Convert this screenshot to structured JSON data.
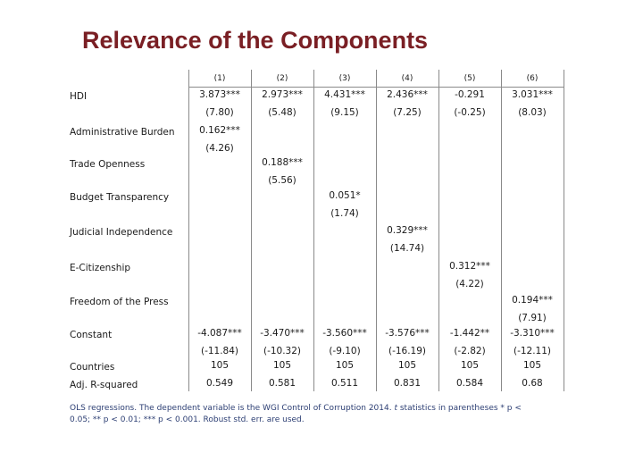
{
  "slide": {
    "title": "Relevance of the Components",
    "note_prefix": "OLS regressions. The dependent variable is the WGI Control of Corruption 2014. ",
    "note_t": "t",
    "note_suffix": " statistics in parentheses * p < 0.05; ** p < 0.01; *** p < 0.001. Robust std. err. are used."
  },
  "table": {
    "columns": [
      "(1)",
      "(2)",
      "(3)",
      "(4)",
      "(5)",
      "(6)"
    ],
    "rows": [
      {
        "label": "HDI",
        "coef": [
          "3.873***",
          "2.973***",
          "4.431***",
          "2.436***",
          "-0.291",
          "3.031***"
        ],
        "t": [
          "(7.80)",
          "(5.48)",
          "(9.15)",
          "(7.25)",
          "(-0.25)",
          "(8.03)"
        ]
      },
      {
        "label": "Administrative Burden",
        "coef": [
          "0.162***",
          "",
          "",
          "",
          "",
          ""
        ],
        "t": [
          "(4.26)",
          "",
          "",
          "",
          "",
          ""
        ]
      },
      {
        "label": "Trade Openness",
        "coef": [
          "",
          "0.188***",
          "",
          "",
          "",
          ""
        ],
        "t": [
          "",
          "(5.56)",
          "",
          "",
          "",
          ""
        ]
      },
      {
        "label": "Budget Transparency",
        "coef": [
          "",
          "",
          "0.051*",
          "",
          "",
          ""
        ],
        "t": [
          "",
          "",
          "(1.74)",
          "",
          "",
          ""
        ]
      },
      {
        "label": "Judicial Independence",
        "coef": [
          "",
          "",
          "",
          "0.329***",
          "",
          ""
        ],
        "t": [
          "",
          "",
          "",
          "(14.74)",
          "",
          ""
        ]
      },
      {
        "label": "E-Citizenship",
        "coef": [
          "",
          "",
          "",
          "",
          "0.312***",
          ""
        ],
        "t": [
          "",
          "",
          "",
          "",
          "(4.22)",
          ""
        ]
      },
      {
        "label": "Freedom of the Press",
        "coef": [
          "",
          "",
          "",
          "",
          "",
          "0.194***"
        ],
        "t": [
          "",
          "",
          "",
          "",
          "",
          "(7.91)"
        ]
      },
      {
        "label": "Constant",
        "coef": [
          "-4.087***",
          "-3.470***",
          "-3.560***",
          "-3.576***",
          "-1.442**",
          "-3.310***"
        ],
        "t": [
          "(-11.84)",
          "(-10.32)",
          "(-9.10)",
          "(-16.19)",
          "(-2.82)",
          "(-12.11)"
        ]
      },
      {
        "label": "Countries",
        "coef": [
          "105",
          "105",
          "105",
          "105",
          "105",
          "105"
        ],
        "t": [
          "",
          "",
          "",
          "",
          "",
          ""
        ]
      },
      {
        "label": "Adj. R-squared",
        "coef": [
          "0.549",
          "0.581",
          "0.511",
          "0.831",
          "0.584",
          "0.68"
        ],
        "t": [
          "",
          "",
          "",
          "",
          "",
          ""
        ]
      }
    ]
  }
}
